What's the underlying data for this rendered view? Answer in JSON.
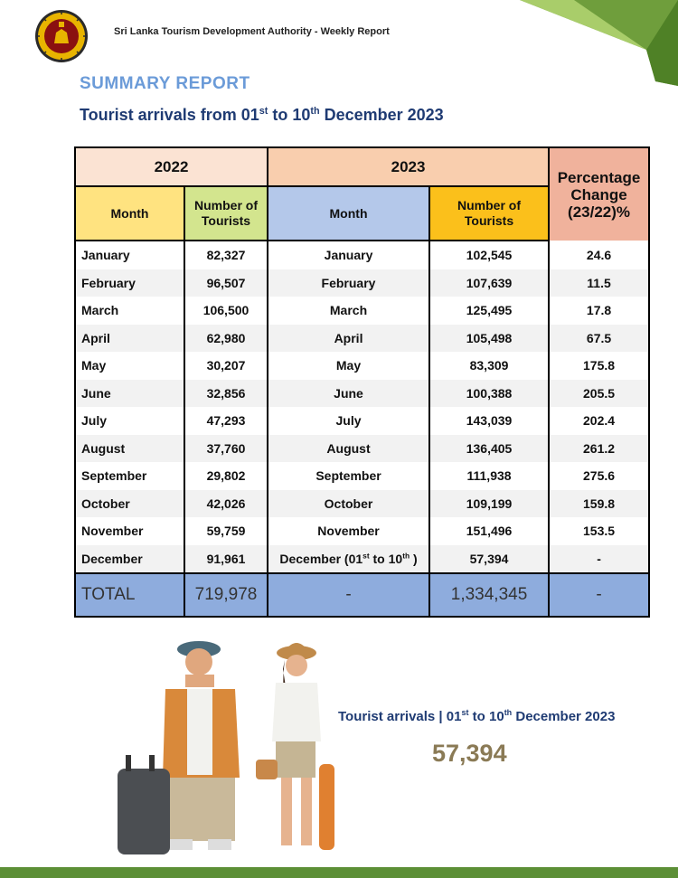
{
  "header": {
    "org_text": "Sri Lanka Tourism Development Authority - Weekly Report"
  },
  "section_title": "SUMMARY REPORT",
  "subtitle": {
    "pre": "Tourist arrivals from 01",
    "sup1": "st",
    "mid": " to 10",
    "sup2": "th",
    "post": " December 2023"
  },
  "table": {
    "year_2022": "2022",
    "year_2023": "2023",
    "col_month": "Month",
    "col_number_line1": "Number of",
    "col_number_line2": "Tourists",
    "col_pct_line1": "Percentage",
    "col_pct_line2": "Change",
    "col_pct_line3": "(23/22)%",
    "rows": [
      {
        "m22": "January",
        "n22": "82,327",
        "m23": "January",
        "n23": "102,545",
        "pct": "24.6"
      },
      {
        "m22": "February",
        "n22": "96,507",
        "m23": "February",
        "n23": "107,639",
        "pct": "11.5"
      },
      {
        "m22": "March",
        "n22": "106,500",
        "m23": "March",
        "n23": "125,495",
        "pct": "17.8"
      },
      {
        "m22": "April",
        "n22": "62,980",
        "m23": "April",
        "n23": "105,498",
        "pct": "67.5"
      },
      {
        "m22": "May",
        "n22": "30,207",
        "m23": "May",
        "n23": "83,309",
        "pct": "175.8"
      },
      {
        "m22": "June",
        "n22": "32,856",
        "m23": "June",
        "n23": "100,388",
        "pct": "205.5"
      },
      {
        "m22": "July",
        "n22": "47,293",
        "m23": "July",
        "n23": "143,039",
        "pct": "202.4"
      },
      {
        "m22": "August",
        "n22": "37,760",
        "m23": "August",
        "n23": "136,405",
        "pct": "261.2"
      },
      {
        "m22": "September",
        "n22": "29,802",
        "m23": "September",
        "n23": "111,938",
        "pct": "275.6"
      },
      {
        "m22": "October",
        "n22": "42,026",
        "m23": "October",
        "n23": "109,199",
        "pct": "159.8"
      },
      {
        "m22": "November",
        "n22": "59,759",
        "m23": "November",
        "n23": "151,496",
        "pct": "153.5"
      },
      {
        "m22": "December",
        "n22": "91,961",
        "m23": "December (01",
        "m23_sup1": "st",
        "m23_mid": " to 10",
        "m23_sup2": "th",
        "m23_post": " )",
        "n23": "57,394",
        "pct": "-"
      }
    ],
    "total": {
      "label": "TOTAL",
      "n22": "719,978",
      "m23": "-",
      "n23": "1,334,345",
      "pct": "-"
    }
  },
  "highlight": {
    "pre": "Tourist arrivals | 01",
    "sup1": "st",
    "mid": " to 10",
    "sup2": "th",
    "post": " December 2023",
    "value": "57,394"
  },
  "colors": {
    "title_blue": "#6b9bd8",
    "subtitle_navy": "#1f3b73",
    "total_row": "#8eacdd",
    "footer_green": "#5c8f36"
  }
}
